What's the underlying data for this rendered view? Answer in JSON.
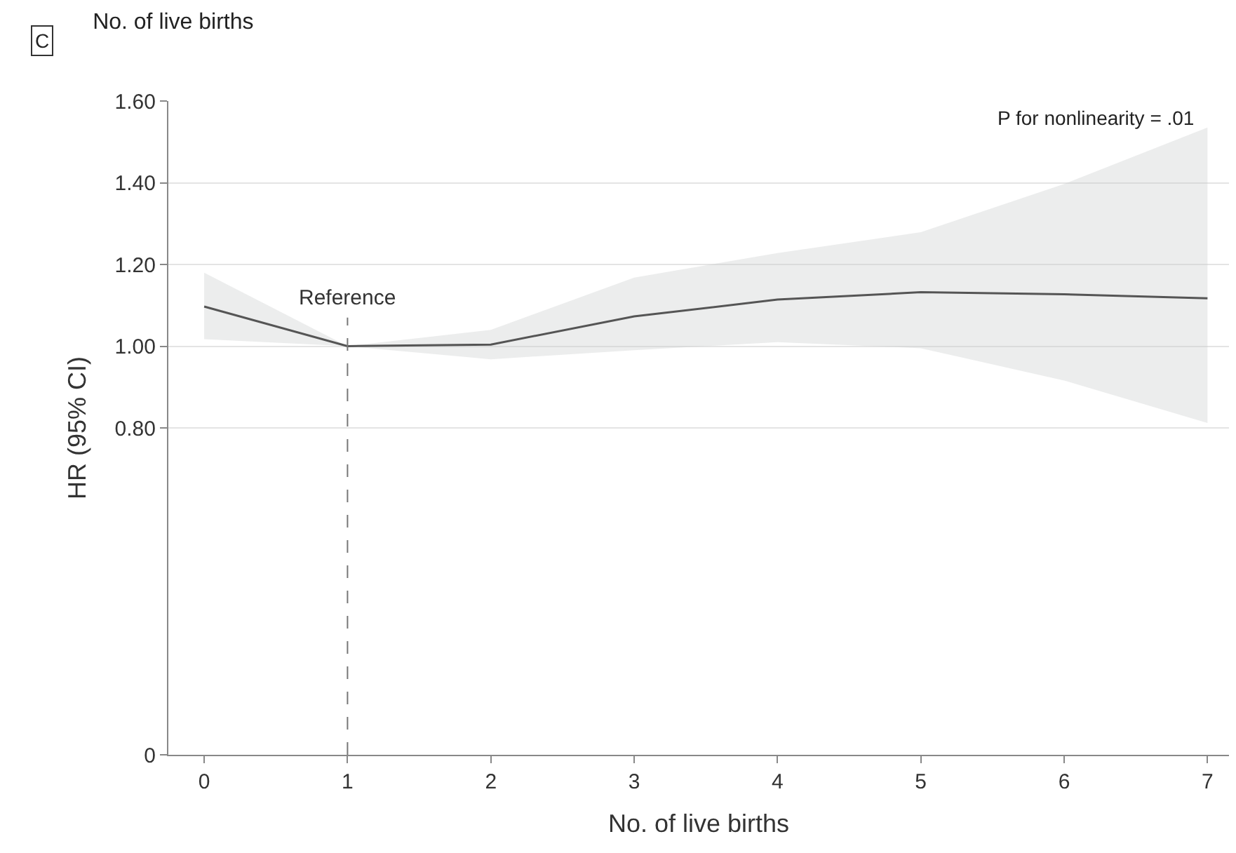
{
  "chart_data": {
    "type": "line",
    "title": "No. of live births",
    "xlabel": "No. of live births",
    "ylabel": "HR (95% CI)",
    "annotations": [
      "C",
      "P for nonlinearity = .01"
    ],
    "x": [
      0,
      1,
      2,
      3,
      4,
      5,
      6,
      7
    ],
    "series": [
      {
        "color": "#555555",
        "values": [
          1.097,
          1.0,
          1.004,
          1.073,
          1.114,
          1.132,
          1.127,
          1.117
        ],
        "lower": [
          1.017,
          1.0,
          0.968,
          0.99,
          1.01,
          0.995,
          0.916,
          0.812
        ],
        "upper": [
          1.18,
          1.0,
          1.04,
          1.168,
          1.228,
          1.279,
          1.397,
          1.535
        ]
      }
    ],
    "xlim": [
      -0.25,
      7.15
    ],
    "xticks": [
      0,
      1,
      2,
      3,
      4,
      5,
      6,
      7
    ],
    "ylim": [
      0,
      1.6
    ],
    "yticks": [
      0,
      {
        "value": 0.8,
        "label": "0.80"
      },
      {
        "value": 1.0,
        "label": "1.00"
      },
      {
        "value": 1.2,
        "label": "1.20"
      },
      {
        "value": 1.4,
        "label": "1.40"
      },
      {
        "value": 1.6,
        "label": "1.60"
      }
    ],
    "ref_lines": [
      {
        "axis": "x",
        "value": 1,
        "label": "Reference",
        "color": "#777777",
        "line_style": "dashed"
      }
    ],
    "grid": "y"
  }
}
